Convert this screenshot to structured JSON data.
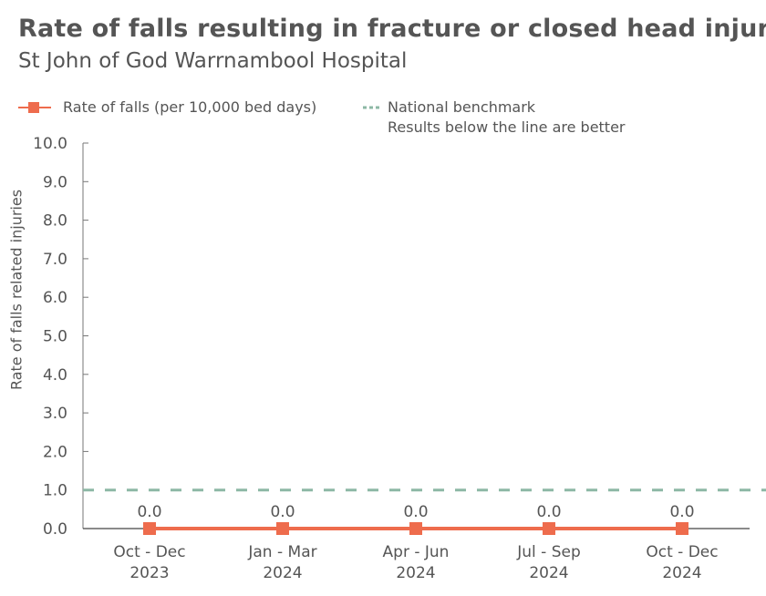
{
  "header": {
    "title": "Rate of falls resulting in fracture or closed head injury",
    "subtitle": "St John of God Warrnambool Hospital"
  },
  "legend": {
    "series_label": "Rate of falls (per 10,000 bed days)",
    "benchmark_label": "National benchmark",
    "benchmark_note": "Results below the line are better"
  },
  "colors": {
    "series": "#EE6C4D",
    "benchmark": "#8DB8A5",
    "axis": "#555555",
    "text": "#555555"
  },
  "chart_data": {
    "type": "line",
    "title": "Rate of falls resulting in fracture or closed head injury",
    "subtitle": "St John of God Warrnambool Hospital",
    "xlabel": "",
    "ylabel": "Rate of falls related injuries",
    "ylim": [
      0,
      10
    ],
    "yticks": [
      "0.0",
      "1.0",
      "2.0",
      "3.0",
      "4.0",
      "5.0",
      "6.0",
      "7.0",
      "8.0",
      "9.0",
      "10.0"
    ],
    "categories": [
      [
        "Oct - Dec",
        "2023"
      ],
      [
        "Jan - Mar",
        "2024"
      ],
      [
        "Apr - Jun",
        "2024"
      ],
      [
        "Jul - Sep",
        "2024"
      ],
      [
        "Oct - Dec",
        "2024"
      ]
    ],
    "series": [
      {
        "name": "Rate of falls (per 10,000 bed days)",
        "values": [
          0.0,
          0.0,
          0.0,
          0.0,
          0.0
        ],
        "data_labels": [
          "0.0",
          "0.0",
          "0.0",
          "0.0",
          "0.0"
        ]
      }
    ],
    "benchmark": {
      "name": "National benchmark",
      "value": 1.0,
      "note": "Results below the line are better"
    },
    "grid": false,
    "legend_position": "top"
  }
}
